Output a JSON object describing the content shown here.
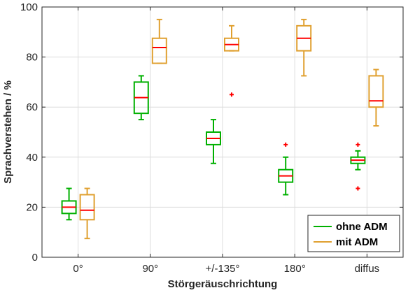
{
  "chart_data": {
    "type": "box",
    "categories": [
      "0°",
      "90°",
      "+/-135°",
      "180°",
      "diffus"
    ],
    "xlabel": "Störgeräuschrichtung",
    "ylabel": "Sprachverstehen / %",
    "ylim": [
      0,
      100
    ],
    "yticks": [
      0,
      20,
      40,
      60,
      80,
      100
    ],
    "grid": true,
    "legend_position": "bottom-right",
    "median_color": "#ff0000",
    "outlier_color": "#ff0000",
    "series": [
      {
        "name": "ohne ADM",
        "color": "#00b000",
        "boxes": [
          {
            "whisker_low": 15,
            "q1": 17.5,
            "median": 20,
            "q3": 22.5,
            "whisker_high": 27.5,
            "outliers": []
          },
          {
            "whisker_low": 55,
            "q1": 57.5,
            "median": 63.8,
            "q3": 70,
            "whisker_high": 72.5,
            "outliers": []
          },
          {
            "whisker_low": 37.5,
            "q1": 45,
            "median": 47.5,
            "q3": 50,
            "whisker_high": 55,
            "outliers": []
          },
          {
            "whisker_low": 25,
            "q1": 30,
            "median": 32.5,
            "q3": 35,
            "whisker_high": 40,
            "outliers": [
              45
            ]
          },
          {
            "whisker_low": 35,
            "q1": 37.5,
            "median": 38.8,
            "q3": 40,
            "whisker_high": 42.5,
            "outliers": [
              45,
              27.5
            ]
          }
        ]
      },
      {
        "name": "mit ADM",
        "color": "#e0a030",
        "boxes": [
          {
            "whisker_low": 7.5,
            "q1": 15,
            "median": 18.8,
            "q3": 25,
            "whisker_high": 27.5,
            "outliers": []
          },
          {
            "whisker_low": 77.5,
            "q1": 77.5,
            "median": 83.8,
            "q3": 87.5,
            "whisker_high": 95,
            "outliers": []
          },
          {
            "whisker_low": 82.5,
            "q1": 82.5,
            "median": 85,
            "q3": 87.5,
            "whisker_high": 92.5,
            "outliers": [
              65
            ]
          },
          {
            "whisker_low": 72.5,
            "q1": 82.5,
            "median": 87.5,
            "q3": 92.5,
            "whisker_high": 95,
            "outliers": []
          },
          {
            "whisker_low": 52.5,
            "q1": 60,
            "median": 62.5,
            "q3": 72.5,
            "whisker_high": 75,
            "outliers": []
          }
        ]
      }
    ]
  }
}
